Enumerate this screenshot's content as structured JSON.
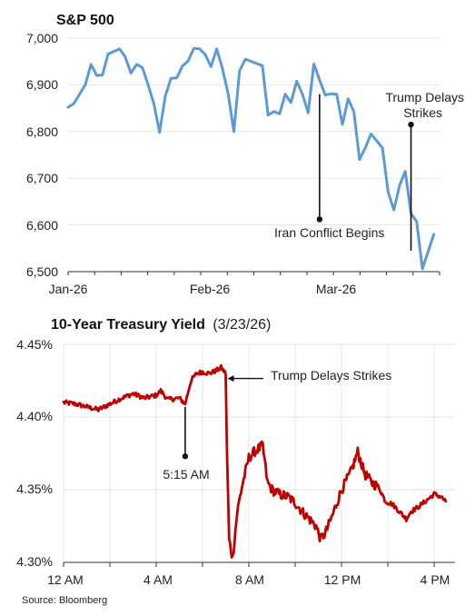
{
  "charts": [
    {
      "type": "line",
      "title": "S&P 500",
      "color": "#5b9bd5",
      "x_ticks": [
        "Jan-26",
        "Feb-26",
        "Mar-26"
      ],
      "y_ticks": [
        "7,000",
        "6,900",
        "6,800",
        "6,700",
        "6,600",
        "6,500"
      ],
      "annotations": [
        {
          "text": "Iran Conflict Begins"
        },
        {
          "line1": "Trump Delays",
          "line2": "Strikes"
        }
      ]
    },
    {
      "type": "line",
      "title": "10-Year Treasury Yield",
      "subtitle": "(3/23/26)",
      "color": "#c00000",
      "x_ticks": [
        "12 AM",
        "4 AM",
        "8 AM",
        "12 PM",
        "4 PM"
      ],
      "y_ticks": [
        "4.45%",
        "4.40%",
        "4.35%",
        "4.30%"
      ],
      "annotations": [
        {
          "text": "Trump Delays Strikes"
        },
        {
          "text": "5:15 AM"
        }
      ]
    }
  ],
  "source": "Source: Bloomberg",
  "chart_data": [
    {
      "type": "line",
      "title": "S&P 500",
      "x_unit": "trading day index (Jan 2, 2026 = 0)",
      "ylim": [
        6500,
        7000
      ],
      "series": [
        {
          "x": [
            0,
            1,
            3,
            4,
            5,
            6,
            7,
            9,
            10,
            11,
            12,
            13,
            14,
            15,
            16,
            17,
            18,
            19,
            20,
            21,
            22,
            23,
            24,
            25,
            26,
            27,
            28,
            29,
            30,
            31,
            34,
            35,
            36,
            37,
            38,
            39,
            40,
            41,
            42,
            43,
            44,
            45,
            46,
            47,
            48,
            49,
            50,
            51,
            52,
            53,
            54,
            55,
            56,
            57,
            58,
            59,
            60,
            61,
            62
          ],
          "y": [
            6852,
            6860,
            6900,
            6944,
            6920,
            6921,
            6966,
            6977,
            6960,
            6925,
            6944,
            6937,
            6900,
            6860,
            6798,
            6876,
            6914,
            6915,
            6940,
            6951,
            6978,
            6977,
            6965,
            6939,
            6977,
            6935,
            6881,
            6800,
            6930,
            6955,
            6941,
            6835,
            6843,
            6838,
            6880,
            6862,
            6908,
            6880,
            6840,
            6945,
            6910,
            6878,
            6881,
            6880,
            6815,
            6870,
            6843,
            6740,
            6765,
            6795,
            6780,
            6765,
            6670,
            6632,
            6685,
            6715,
            6625,
            6607,
            6506
          ]
        }
      ],
      "extra_points": [
        {
          "x": 64,
          "y": 6580
        }
      ],
      "annotation_anchors": [
        {
          "x": 44,
          "y": 6612
        },
        {
          "x": 60,
          "y": 6815
        }
      ]
    },
    {
      "type": "line",
      "title": "10-Year Treasury Yield",
      "subtitle": "(3/23/26)",
      "x_unit": "hours since 12 AM",
      "ylim": [
        4.3,
        4.45
      ],
      "keypoints": [
        [
          0,
          4.41
        ],
        [
          0.5,
          4.409
        ],
        [
          1.0,
          4.407
        ],
        [
          1.5,
          4.405
        ],
        [
          2.0,
          4.409
        ],
        [
          2.5,
          4.413
        ],
        [
          3.0,
          4.416
        ],
        [
          3.5,
          4.413
        ],
        [
          4.0,
          4.415
        ],
        [
          4.2,
          4.418
        ],
        [
          4.5,
          4.412
        ],
        [
          5.0,
          4.413
        ],
        [
          5.25,
          4.409
        ],
        [
          5.5,
          4.425
        ],
        [
          5.75,
          4.43
        ],
        [
          6.0,
          4.431
        ],
        [
          6.3,
          4.43
        ],
        [
          6.6,
          4.432
        ],
        [
          6.8,
          4.434
        ],
        [
          7.0,
          4.43
        ],
        [
          7.05,
          4.38
        ],
        [
          7.15,
          4.315
        ],
        [
          7.3,
          4.303
        ],
        [
          7.5,
          4.335
        ],
        [
          7.7,
          4.352
        ],
        [
          8.0,
          4.372
        ],
        [
          8.3,
          4.377
        ],
        [
          8.6,
          4.38
        ],
        [
          8.8,
          4.355
        ],
        [
          9.0,
          4.35
        ],
        [
          9.3,
          4.347
        ],
        [
          9.7,
          4.345
        ],
        [
          10.0,
          4.341
        ],
        [
          10.3,
          4.335
        ],
        [
          10.6,
          4.33
        ],
        [
          10.9,
          4.325
        ],
        [
          11.1,
          4.316
        ],
        [
          11.3,
          4.32
        ],
        [
          11.6,
          4.332
        ],
        [
          12.0,
          4.35
        ],
        [
          12.4,
          4.362
        ],
        [
          12.7,
          4.376
        ],
        [
          13.0,
          4.361
        ],
        [
          13.3,
          4.355
        ],
        [
          13.6,
          4.352
        ],
        [
          13.9,
          4.342
        ],
        [
          14.2,
          4.34
        ],
        [
          14.5,
          4.335
        ],
        [
          14.8,
          4.33
        ],
        [
          15.0,
          4.335
        ],
        [
          15.3,
          4.338
        ],
        [
          15.7,
          4.343
        ],
        [
          16.0,
          4.347
        ],
        [
          16.3,
          4.345
        ],
        [
          16.5,
          4.342
        ]
      ],
      "annotation_anchors": [
        {
          "x": 7.0,
          "y": 4.4265
        },
        {
          "x": 5.25,
          "y": 4.373
        }
      ]
    }
  ]
}
